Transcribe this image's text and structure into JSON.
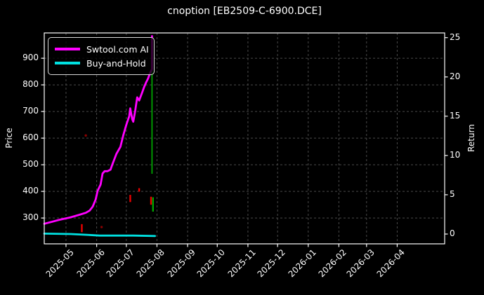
{
  "title": "cnoption [EB2509-C-6900.DCE]",
  "chart_data": {
    "type": "line",
    "title": "cnoption [EB2509-C-6900.DCE]",
    "background_color": "#000000",
    "grid": true,
    "grid_color": "#4a4a4a",
    "spine_color": "#ffffff",
    "legend_position": "upper-left",
    "x_axis": {
      "tick_labels": [
        "2025-05",
        "2025-06",
        "2025-07",
        "2025-08",
        "2025-09",
        "2025-10",
        "2025-11",
        "2025-12",
        "2026-01",
        "2026-02",
        "2026-03",
        "2026-04"
      ],
      "domain": [
        "2025-04-09",
        "2026-05-19"
      ]
    },
    "left_axis": {
      "label": "Price",
      "ticks": [
        300,
        400,
        500,
        600,
        700,
        800,
        900
      ],
      "range": [
        203,
        995
      ]
    },
    "right_axis": {
      "label": "Return",
      "ticks": [
        0,
        5,
        10,
        15,
        20,
        25
      ],
      "range": [
        -1.25,
        25.6
      ]
    },
    "series": [
      {
        "name": "Swtool.com AI",
        "color": "#ff00ff",
        "axis": "return",
        "points": [
          [
            "2025-04-09",
            1.3
          ],
          [
            "2025-04-24",
            1.8
          ],
          [
            "2025-05-05",
            2.1
          ],
          [
            "2025-05-13",
            2.4
          ],
          [
            "2025-05-21",
            2.7
          ],
          [
            "2025-05-25",
            3.0
          ],
          [
            "2025-05-28",
            3.5
          ],
          [
            "2025-05-31",
            4.4
          ],
          [
            "2025-06-02",
            5.5
          ],
          [
            "2025-06-05",
            6.3
          ],
          [
            "2025-06-07",
            7.7
          ],
          [
            "2025-06-09",
            8.0
          ],
          [
            "2025-06-12",
            8.0
          ],
          [
            "2025-06-15",
            8.2
          ],
          [
            "2025-06-17",
            8.9
          ],
          [
            "2025-06-21",
            10.2
          ],
          [
            "2025-06-25",
            11.1
          ],
          [
            "2025-06-28",
            12.6
          ],
          [
            "2025-07-01",
            13.9
          ],
          [
            "2025-07-04",
            15.0
          ],
          [
            "2025-07-05",
            16.0
          ],
          [
            "2025-07-07",
            14.6
          ],
          [
            "2025-07-08",
            14.3
          ],
          [
            "2025-07-10",
            15.7
          ],
          [
            "2025-07-12",
            17.4
          ],
          [
            "2025-07-14",
            17.0
          ],
          [
            "2025-07-17",
            18.0
          ],
          [
            "2025-07-19",
            18.7
          ],
          [
            "2025-07-21",
            19.3
          ],
          [
            "2025-07-23",
            19.8
          ],
          [
            "2025-07-25",
            20.5
          ],
          [
            "2025-07-27",
            21.0
          ],
          [
            "2025-07-27",
            25.2
          ]
        ]
      },
      {
        "name": "Buy-and-Hold",
        "color": "#00e0e0",
        "axis": "return",
        "points": [
          [
            "2025-04-09",
            0.05
          ],
          [
            "2025-05-06",
            0.0
          ],
          [
            "2025-05-22",
            -0.1
          ],
          [
            "2025-06-04",
            -0.2
          ],
          [
            "2025-06-20",
            -0.2
          ],
          [
            "2025-07-08",
            -0.2
          ],
          [
            "2025-07-30",
            -0.25
          ]
        ]
      }
    ],
    "price_marks": [
      {
        "date": "2025-05-17",
        "kind": "bar",
        "color": "#eb0000",
        "low": 247,
        "high": 277
      },
      {
        "date": "2025-05-21",
        "kind": "dot",
        "color": "#8b0000",
        "price": 610
      },
      {
        "date": "2025-06-06",
        "kind": "dot",
        "color": "#8b0000",
        "price": 266
      },
      {
        "date": "2025-07-05",
        "kind": "bar",
        "color": "#eb0000",
        "low": 360,
        "high": 387
      },
      {
        "date": "2025-07-14",
        "kind": "bar",
        "color": "#eb0000",
        "low": 399,
        "high": 412
      },
      {
        "date": "2025-07-27",
        "kind": "bar",
        "color": "#00a400",
        "low": 466,
        "high": 855
      },
      {
        "date": "2025-07-26",
        "kind": "bar",
        "color": "#eb0000",
        "low": 350,
        "high": 380
      },
      {
        "date": "2025-07-28",
        "kind": "bar",
        "color": "#00a400",
        "low": 324,
        "high": 378
      }
    ]
  }
}
